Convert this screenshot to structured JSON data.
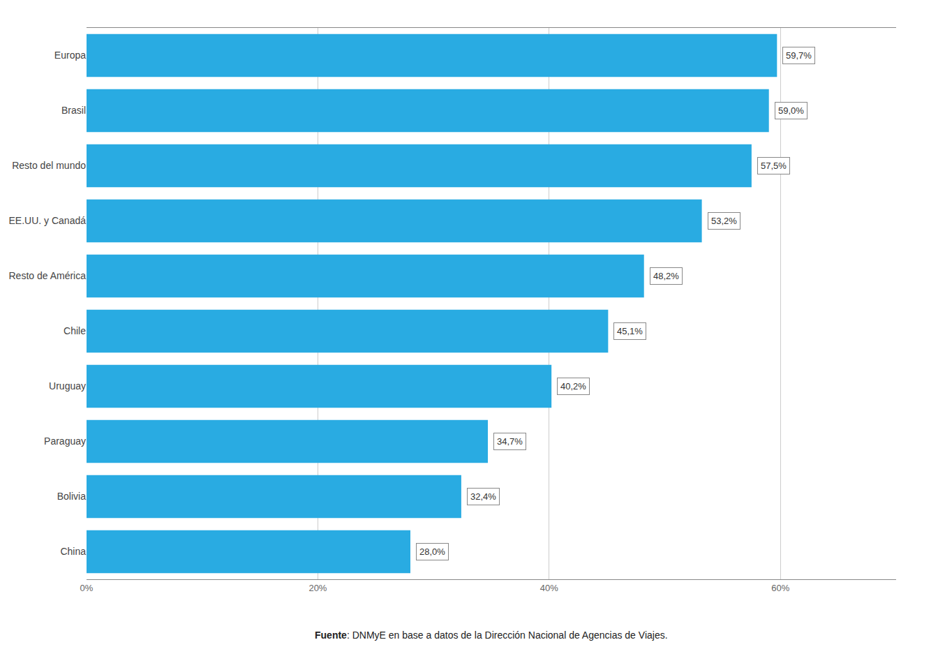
{
  "chart_data": {
    "type": "bar",
    "orientation": "horizontal",
    "categories": [
      "China",
      "Bolivia",
      "Paraguay",
      "Uruguay",
      "Chile",
      "Resto de América",
      "EE.UU. y Canadá",
      "Resto del mundo",
      "Brasil",
      "Europa"
    ],
    "values": [
      28.0,
      32.4,
      34.7,
      40.2,
      45.1,
      48.2,
      53.2,
      57.5,
      59.0,
      59.7
    ],
    "value_labels": [
      "28,0%",
      "32,4%",
      "34,7%",
      "40,2%",
      "45,1%",
      "48,2%",
      "53,2%",
      "57,5%",
      "59,0%",
      "59,7%"
    ],
    "data_labels": true,
    "color": "#29ABE2",
    "xlim": [
      0,
      70
    ],
    "xticks": [
      {
        "value": 0,
        "label": "0%"
      },
      {
        "value": 20,
        "label": "20%"
      },
      {
        "value": 40,
        "label": "40%"
      },
      {
        "value": 60,
        "label": "60%"
      }
    ],
    "grid": true,
    "annotations": [
      {
        "text": "Fuente: DNMyE en base a datos de la Dirección Nacional de Agencias de Viajes.",
        "bold": "Fuente"
      }
    ]
  }
}
